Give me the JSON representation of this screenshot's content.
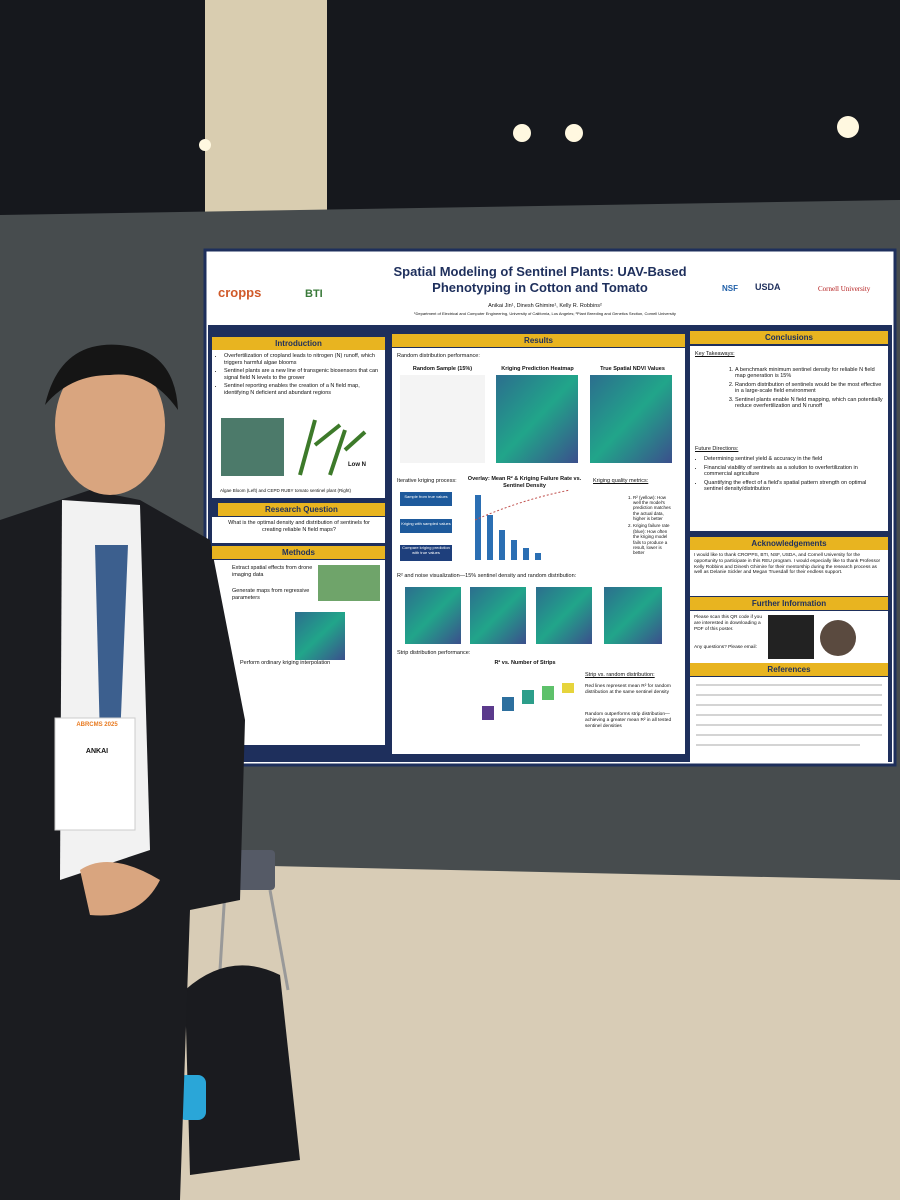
{
  "poster": {
    "title": "Spatial Modeling of Sentinel Plants: UAV-Based Phenotyping in Cotton and Tomato",
    "authors": "Anikai Jin¹, Dinesh Ghimire¹, Kelly R. Robbins²",
    "affiliations": "¹Department of Electrical and Computer Engineering, University of California, Los Angeles; ²Plant Breeding and Genetics Section, Cornell University",
    "logos": [
      "cropps",
      "BTI",
      "NSF",
      "USDA",
      "Cornell University"
    ],
    "introduction": {
      "heading": "Introduction",
      "bullets": [
        "Overfertilization of cropland leads to nitrogen (N) runoff, which triggers harmful algae blooms",
        "Sentinel plants are a new line of transgenic biosensors that can signal field N levels to the grower",
        "Sentinel reporting enables the creation of a N field map, identifying N deficient and abundant regions"
      ],
      "image_label": "Low N",
      "caption": "Algae Bloom (Left) and CEPD RUBY tomato sentinel plant (Right)"
    },
    "research_question": {
      "heading": "Research Question",
      "text": "What is the optimal density and distribution of sentinels for creating reliable N field maps?"
    },
    "methods": {
      "heading": "Methods",
      "items": [
        "Extract spatial effects from drone imaging data",
        "Generate maps from regressive parameters",
        "Perform ordinary kriging interpolation"
      ]
    },
    "results": {
      "heading": "Results",
      "random_heading": "Random distribution performance:",
      "panel_titles": [
        "Random Sample (15%)",
        "Kriging Prediction Heatmap",
        "True Spatial NDVI Values"
      ],
      "iterative_heading": "Iterative kriging process:",
      "steps": [
        "Sample from true values",
        "Kriging with sampled values",
        "Compare kriging prediction with true values"
      ],
      "overlay_title": "Overlay: Mean R² & Kriging Failure Rate vs. Sentinel Density",
      "metrics_heading": "Kriging quality metrics:",
      "metrics": [
        "R² (yellow): How well the model's prediction matches the actual data, higher is better",
        "Kriging failure rate (blue): How often the kriging model fails to produce a result, lower is better"
      ],
      "noise_heading": "R² and noise visualization—15% sentinel density and random distribution:",
      "strip_heading": "Strip distribution performance:",
      "strip_chart_title": "R² vs. Number of Strips",
      "strip_vs_random_heading": "Strip vs. random distribution:",
      "strip_notes": [
        "Red lines represent mean R² for random distribution at the same sentinel density",
        "Random outperforms strip distribution—achieving a greater mean R² in all tested sentinel densities"
      ]
    },
    "conclusions": {
      "heading": "Conclusions",
      "takeaways_heading": "Key Takeaways:",
      "takeaways": [
        "A benchmark minimum sentinel density for reliable N field map generation is 15%",
        "Random distribution of sentinels would be the most effective in a large-scale field environment",
        "Sentinel plants enable N field mapping, which can potentially reduce overfertilization and N runoff"
      ],
      "future_heading": "Future Directions:",
      "future": [
        "Determining sentinel yield & accuracy in the field",
        "Financial viability of sentinels as a solution to overfertilization in commercial agriculture",
        "Quantifying the effect of a field's spatial pattern strength on optimal sentinel density/distribution"
      ]
    },
    "acknowledgements": {
      "heading": "Acknowledgements",
      "text": "I would like to thank CROPPS, BTI, NSF, USDA, and Cornell University for the opportunity to participate in this REU program. I would especially like to thank Professor Kelly Robbins and Dinesh Ghimire for their mentorship during the research process as well as Delanie Sickler and Megan Truesdall for their endless support."
    },
    "further_information": {
      "heading": "Further Information",
      "text": "Please scan this QR code if you are interested in downloading a PDF of this poster.",
      "contact": "Any questions? Please email:"
    },
    "references": {
      "heading": "References"
    }
  },
  "badge": {
    "event": "ABRCMS 2025",
    "name": "ANKAI"
  }
}
